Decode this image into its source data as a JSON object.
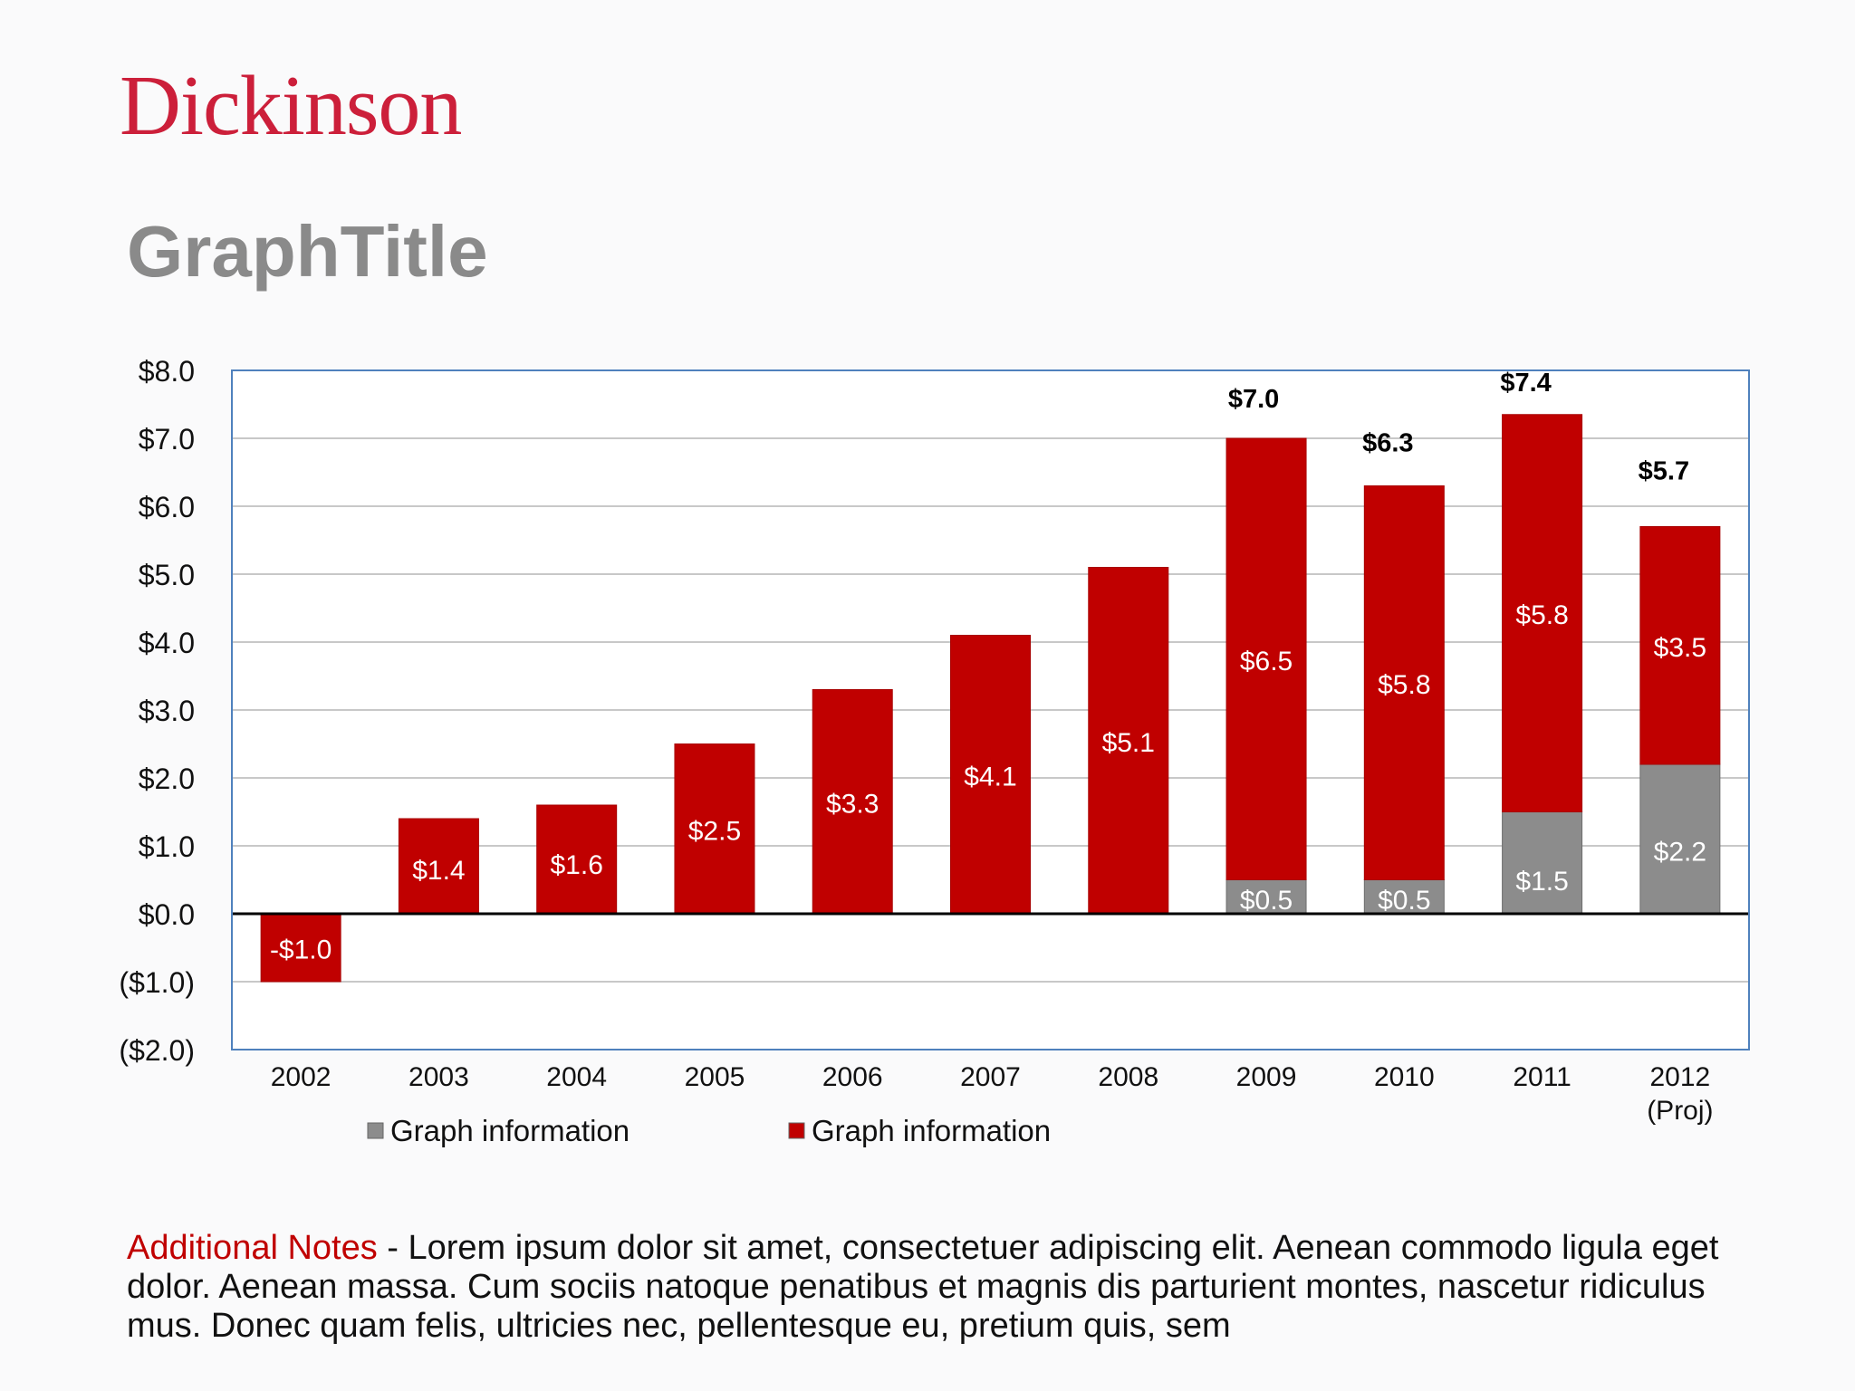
{
  "header": {
    "logo_text": "Dickinson",
    "title": "GraphTitle"
  },
  "colors": {
    "logo": "#cc1f3a",
    "series_gray": "#8c8c8c",
    "series_red": "#c00000",
    "axis_frame": "#4f81bd"
  },
  "chart_data": {
    "type": "bar",
    "stacked": true,
    "categories": [
      "2002",
      "2003",
      "2004",
      "2005",
      "2006",
      "2007",
      "2008",
      "2009",
      "2010",
      "2011",
      "2012\n(Proj)"
    ],
    "series": [
      {
        "name": "Graph information",
        "color": "#8c8c8c",
        "values": [
          0,
          0,
          0,
          0,
          0,
          0,
          0,
          0.5,
          0.5,
          1.5,
          2.2
        ],
        "labels": [
          "",
          "",
          "",
          "",
          "",
          "",
          "",
          "$0.5",
          "$0.5",
          "$1.5",
          "$2.2"
        ]
      },
      {
        "name": "Graph information",
        "color": "#c00000",
        "values": [
          -1.0,
          1.4,
          1.6,
          2.5,
          3.3,
          4.1,
          5.1,
          6.5,
          5.8,
          5.85,
          3.5
        ],
        "labels": [
          "-$1.0",
          "$1.4",
          "$1.6",
          "$2.5",
          "$3.3",
          "$4.1",
          "$5.1",
          "$6.5",
          "$5.8",
          "$5.8",
          "$3.5"
        ]
      }
    ],
    "totals": [
      "",
      "",
      "",
      "",
      "",
      "",
      "",
      "$7.0",
      "$6.3",
      "$7.4",
      "$5.7"
    ],
    "ylim": [
      -2,
      8
    ],
    "yticks": [
      8,
      7,
      6,
      5,
      4,
      3,
      2,
      1,
      0,
      -1,
      -2
    ],
    "ytick_labels": [
      "$8.0",
      "$7.0",
      "$6.0",
      "$5.0",
      "$4.0",
      "$3.0",
      "$2.0",
      "$1.0",
      "$0.0",
      "($1.0)",
      "($2.0)"
    ],
    "grid": true,
    "legend_position": "bottom-left",
    "title": "",
    "xlabel": "",
    "ylabel": ""
  },
  "notes": {
    "label": "Additional Notes",
    "text": " - Lorem ipsum dolor sit amet, consectetuer adipiscing elit. Aenean commodo ligula eget dolor. Aenean massa. Cum sociis natoque penatibus et magnis dis parturient montes, nascetur ridiculus mus. Donec quam felis, ultricies nec, pellentesque eu, pretium quis, sem"
  }
}
